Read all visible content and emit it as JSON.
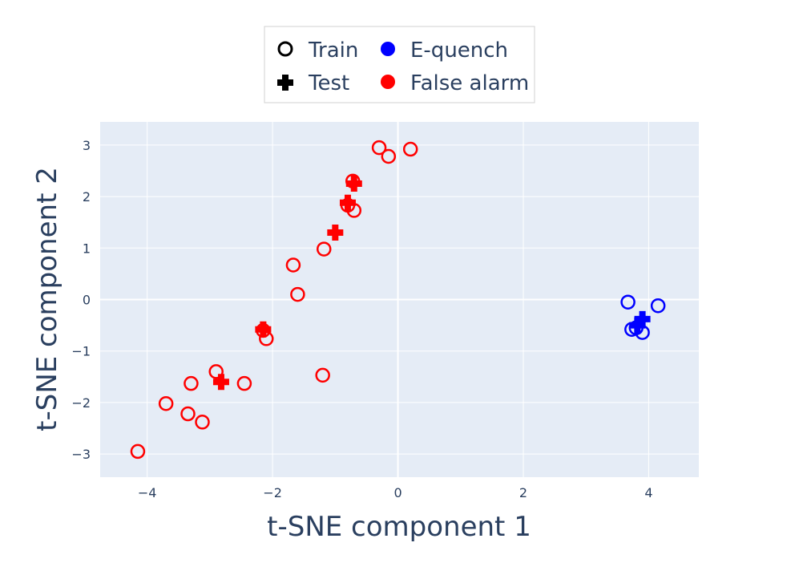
{
  "chart_data": {
    "type": "scatter",
    "title": "",
    "xlabel": "t-SNE component 1",
    "ylabel": "t-SNE component 2",
    "xlim": [
      -4.75,
      4.8
    ],
    "ylim": [
      -3.45,
      3.45
    ],
    "x_ticks": [
      -4,
      -2,
      0,
      2,
      4
    ],
    "y_ticks": [
      -3,
      -2,
      -1,
      0,
      1,
      2,
      3
    ],
    "x_tick_labels": [
      "−4",
      "−2",
      "0",
      "2",
      "4"
    ],
    "y_tick_labels": [
      "−3",
      "−2",
      "−1",
      "0",
      "1",
      "2",
      "3"
    ],
    "grid": true,
    "background_color": "#e5ecf6",
    "legend_position": "top-center",
    "legend": {
      "marker_entries": [
        {
          "label": "Train",
          "symbol": "circle-open",
          "color": "#000000"
        },
        {
          "label": "Test",
          "symbol": "cross",
          "color": "#000000"
        }
      ],
      "color_entries": [
        {
          "label": "E-quench",
          "symbol": "circle",
          "color": "#0000ff"
        },
        {
          "label": "False alarm",
          "symbol": "circle",
          "color": "#ff0000"
        }
      ]
    },
    "series": [
      {
        "name": "False alarm",
        "split": "Train",
        "symbol": "circle-open",
        "color": "#ff0000",
        "points": [
          [
            -0.3,
            2.95
          ],
          [
            0.2,
            2.92
          ],
          [
            -0.15,
            2.78
          ],
          [
            -0.72,
            2.3
          ],
          [
            -0.8,
            1.83
          ],
          [
            -0.7,
            1.73
          ],
          [
            -1.18,
            0.98
          ],
          [
            -1.67,
            0.67
          ],
          [
            -1.6,
            0.1
          ],
          [
            -2.15,
            -0.6
          ],
          [
            -2.1,
            -0.76
          ],
          [
            -1.2,
            -1.47
          ],
          [
            -2.9,
            -1.4
          ],
          [
            -3.3,
            -1.63
          ],
          [
            -2.45,
            -1.63
          ],
          [
            -3.7,
            -2.02
          ],
          [
            -3.35,
            -2.22
          ],
          [
            -3.12,
            -2.38
          ],
          [
            -4.15,
            -2.95
          ]
        ]
      },
      {
        "name": "False alarm",
        "split": "Test",
        "symbol": "cross",
        "color": "#ff0000",
        "points": [
          [
            -0.7,
            2.25
          ],
          [
            -0.8,
            1.88
          ],
          [
            -1.0,
            1.3
          ],
          [
            -2.15,
            -0.58
          ],
          [
            -2.82,
            -1.6
          ]
        ]
      },
      {
        "name": "E-quench",
        "split": "Train",
        "symbol": "circle-open",
        "color": "#0000ff",
        "points": [
          [
            3.67,
            -0.05
          ],
          [
            4.15,
            -0.12
          ],
          [
            3.73,
            -0.58
          ],
          [
            3.8,
            -0.55
          ],
          [
            3.9,
            -0.64
          ]
        ]
      },
      {
        "name": "E-quench",
        "split": "Test",
        "symbol": "cross",
        "color": "#0000ff",
        "points": [
          [
            3.9,
            -0.38
          ],
          [
            3.82,
            -0.5
          ]
        ]
      }
    ]
  }
}
